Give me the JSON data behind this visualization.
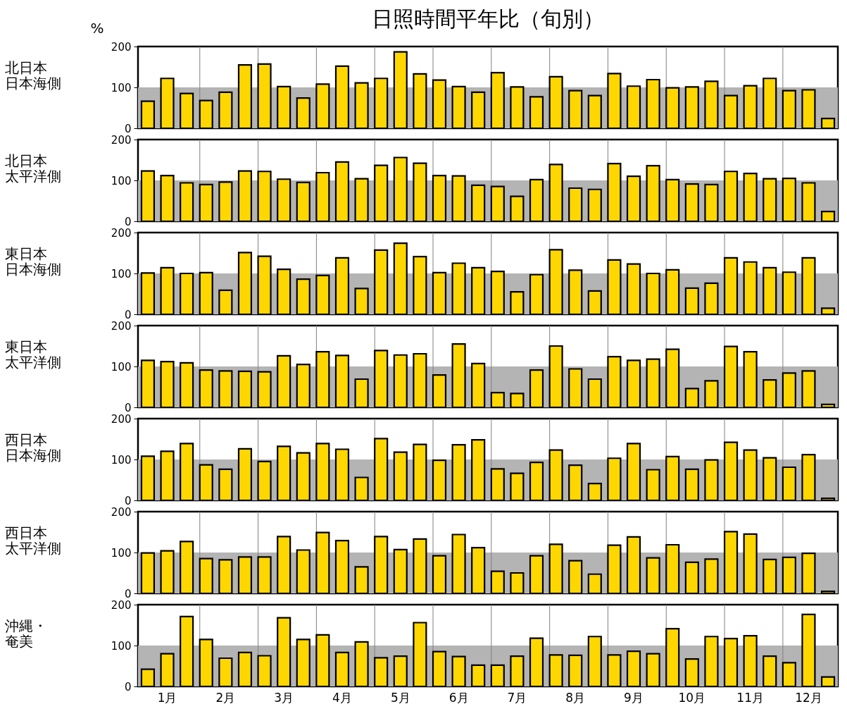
{
  "chart_data": [
    {
      "type": "bar",
      "title": "日照時間平年比（旬別）",
      "annotations": [
        "%"
      ],
      "ylabel": "北日本日本海側",
      "categories": [
        null,
        null,
        null,
        null,
        null,
        null,
        null,
        null,
        null,
        null,
        null,
        null,
        null,
        null,
        null,
        null,
        null,
        null,
        null,
        null,
        null,
        null,
        null,
        null,
        null,
        null,
        null,
        null,
        null,
        null,
        null,
        null,
        null,
        null,
        null,
        null
      ],
      "color": "#ffd700",
      "ylim": [
        0,
        200
      ],
      "yticks": [
        0,
        100,
        200
      ],
      "grid": "x",
      "bands": [
        {
          "axis": "y",
          "from": 0,
          "to": 100,
          "color": "#b4b4b4"
        }
      ],
      "values": [
        66,
        122,
        85,
        68,
        88,
        155,
        157,
        102,
        74,
        108,
        152,
        111,
        122,
        187,
        133,
        118,
        102,
        88,
        136,
        101,
        77,
        126,
        92,
        80,
        134,
        103,
        119,
        99,
        101,
        115,
        80,
        104,
        122,
        92,
        94,
        24
      ]
    },
    {
      "type": "bar",
      "ylabel": "北日本太平洋側",
      "categories": [
        null,
        null,
        null,
        null,
        null,
        null,
        null,
        null,
        null,
        null,
        null,
        null,
        null,
        null,
        null,
        null,
        null,
        null,
        null,
        null,
        null,
        null,
        null,
        null,
        null,
        null,
        null,
        null,
        null,
        null,
        null,
        null,
        null,
        null,
        null,
        null
      ],
      "color": "#ffd700",
      "ylim": [
        0,
        200
      ],
      "yticks": [
        0,
        100,
        200
      ],
      "grid": "x",
      "bands": [
        {
          "axis": "y",
          "from": 0,
          "to": 100,
          "color": "#b4b4b4"
        }
      ],
      "values": [
        123,
        112,
        94,
        90,
        96,
        123,
        122,
        103,
        95,
        119,
        145,
        104,
        137,
        156,
        142,
        112,
        111,
        88,
        85,
        61,
        102,
        139,
        81,
        78,
        141,
        110,
        136,
        102,
        91,
        90,
        122,
        117,
        104,
        105,
        94,
        24
      ]
    },
    {
      "type": "bar",
      "ylabel": "東日本日本海側",
      "categories": [
        null,
        null,
        null,
        null,
        null,
        null,
        null,
        null,
        null,
        null,
        null,
        null,
        null,
        null,
        null,
        null,
        null,
        null,
        null,
        null,
        null,
        null,
        null,
        null,
        null,
        null,
        null,
        null,
        null,
        null,
        null,
        null,
        null,
        null,
        null,
        null
      ],
      "color": "#ffd700",
      "ylim": [
        0,
        200
      ],
      "yticks": [
        0,
        100,
        200
      ],
      "grid": "x",
      "bands": [
        {
          "axis": "y",
          "from": 0,
          "to": 100,
          "color": "#b4b4b4"
        }
      ],
      "values": [
        101,
        114,
        100,
        102,
        59,
        151,
        142,
        110,
        86,
        95,
        138,
        63,
        157,
        174,
        141,
        102,
        125,
        114,
        105,
        55,
        97,
        158,
        108,
        57,
        133,
        123,
        100,
        109,
        64,
        76,
        138,
        128,
        114,
        103,
        138,
        15
      ]
    },
    {
      "type": "bar",
      "ylabel": "東日本太平洋側",
      "categories": [
        null,
        null,
        null,
        null,
        null,
        null,
        null,
        null,
        null,
        null,
        null,
        null,
        null,
        null,
        null,
        null,
        null,
        null,
        null,
        null,
        null,
        null,
        null,
        null,
        null,
        null,
        null,
        null,
        null,
        null,
        null,
        null,
        null,
        null,
        null,
        null
      ],
      "color": "#ffd700",
      "ylim": [
        0,
        200
      ],
      "yticks": [
        0,
        100,
        200
      ],
      "grid": "x",
      "bands": [
        {
          "axis": "y",
          "from": 0,
          "to": 100,
          "color": "#b4b4b4"
        }
      ],
      "values": [
        115,
        112,
        109,
        91,
        89,
        88,
        87,
        126,
        105,
        136,
        127,
        69,
        139,
        128,
        131,
        79,
        155,
        107,
        36,
        34,
        91,
        150,
        94,
        69,
        124,
        115,
        118,
        142,
        46,
        65,
        149,
        136,
        67,
        84,
        89,
        7
      ]
    },
    {
      "type": "bar",
      "ylabel": "西日本日本海側",
      "categories": [
        null,
        null,
        null,
        null,
        null,
        null,
        null,
        null,
        null,
        null,
        null,
        null,
        null,
        null,
        null,
        null,
        null,
        null,
        null,
        null,
        null,
        null,
        null,
        null,
        null,
        null,
        null,
        null,
        null,
        null,
        null,
        null,
        null,
        null,
        null,
        null
      ],
      "color": "#ffd700",
      "ylim": [
        0,
        200
      ],
      "yticks": [
        0,
        100,
        200
      ],
      "grid": "x",
      "bands": [
        {
          "axis": "y",
          "from": 0,
          "to": 100,
          "color": "#b4b4b4"
        }
      ],
      "values": [
        108,
        120,
        139,
        87,
        76,
        126,
        95,
        132,
        116,
        139,
        125,
        56,
        151,
        118,
        137,
        98,
        136,
        148,
        77,
        66,
        93,
        123,
        86,
        41,
        103,
        139,
        75,
        107,
        76,
        99,
        142,
        123,
        104,
        81,
        112,
        5
      ]
    },
    {
      "type": "bar",
      "ylabel": "西日本太平洋側",
      "categories": [
        null,
        null,
        null,
        null,
        null,
        null,
        null,
        null,
        null,
        null,
        null,
        null,
        null,
        null,
        null,
        null,
        null,
        null,
        null,
        null,
        null,
        null,
        null,
        null,
        null,
        null,
        null,
        null,
        null,
        null,
        null,
        null,
        null,
        null,
        null,
        null
      ],
      "color": "#ffd700",
      "ylim": [
        0,
        200
      ],
      "yticks": [
        0,
        100,
        200
      ],
      "grid": "x",
      "bands": [
        {
          "axis": "y",
          "from": 0,
          "to": 100,
          "color": "#b4b4b4"
        }
      ],
      "values": [
        99,
        104,
        127,
        85,
        82,
        89,
        89,
        139,
        106,
        149,
        129,
        65,
        139,
        107,
        133,
        92,
        144,
        112,
        54,
        50,
        92,
        120,
        80,
        47,
        118,
        138,
        87,
        119,
        76,
        84,
        151,
        145,
        83,
        88,
        98,
        5
      ]
    },
    {
      "type": "bar",
      "ylabel": "沖縄・奄美",
      "categories": [
        null,
        "1月",
        null,
        null,
        "2月",
        null,
        null,
        "3月",
        null,
        null,
        "4月",
        null,
        null,
        "5月",
        null,
        null,
        "6月",
        null,
        null,
        "7月",
        null,
        null,
        "8月",
        null,
        null,
        "9月",
        null,
        null,
        "10月",
        null,
        null,
        "11月",
        null,
        null,
        "12月",
        null
      ],
      "color": "#ffd700",
      "ylim": [
        0,
        200
      ],
      "yticks": [
        0,
        100,
        200
      ],
      "grid": "x",
      "bands": [
        {
          "axis": "y",
          "from": 0,
          "to": 100,
          "color": "#b4b4b4"
        }
      ],
      "values": [
        42,
        80,
        171,
        115,
        69,
        83,
        75,
        168,
        115,
        126,
        83,
        109,
        70,
        74,
        156,
        85,
        73,
        52,
        52,
        74,
        118,
        77,
        76,
        122,
        77,
        86,
        80,
        141,
        67,
        122,
        117,
        124,
        74,
        58,
        176,
        23
      ]
    }
  ]
}
